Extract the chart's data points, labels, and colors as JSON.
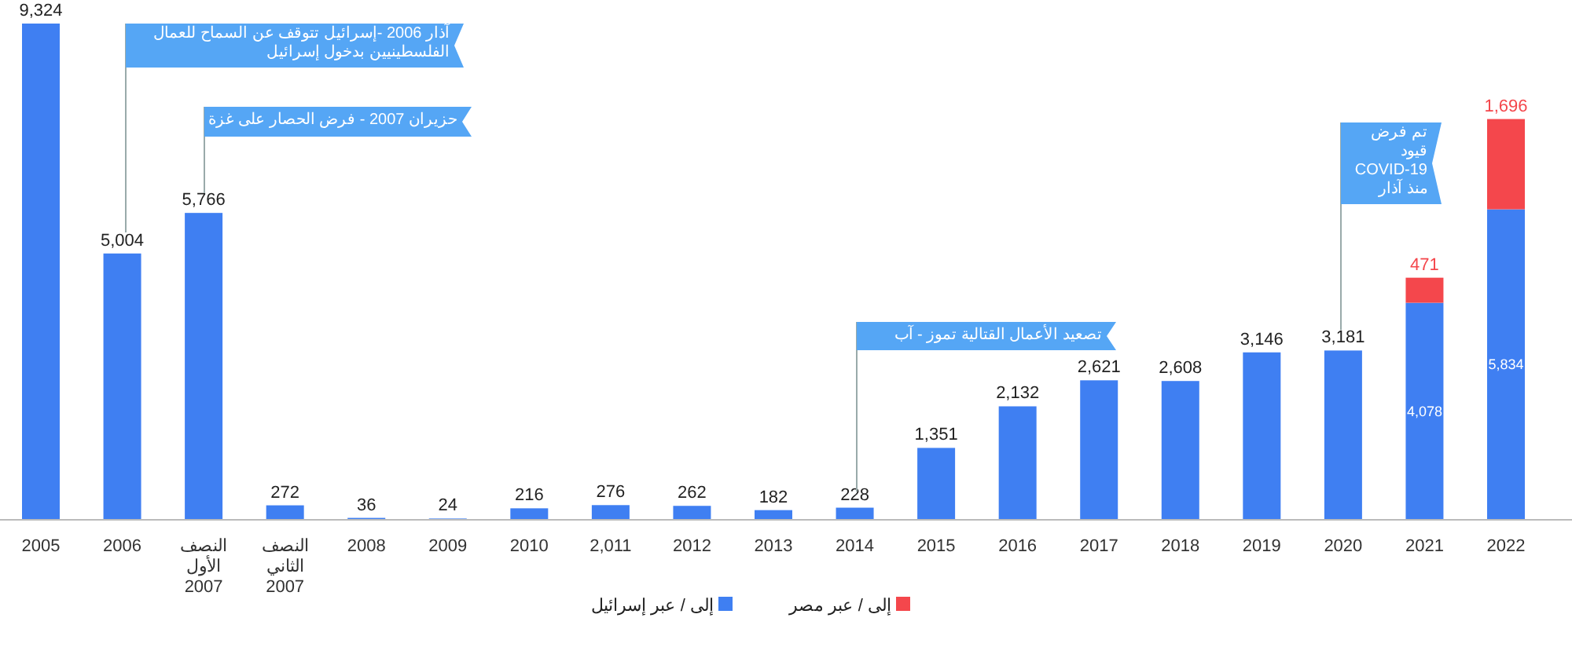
{
  "chart_data": {
    "type": "bar",
    "stacked": true,
    "legend": "bottom",
    "categories": [
      "2005",
      "2006",
      "النصف الأول 2007",
      "النصف الثاني 2007",
      "2008",
      "2009",
      "2010",
      "2,011",
      "2012",
      "2013",
      "2014",
      "2015",
      "2016",
      "2017",
      "2018",
      "2019",
      "2020",
      "2021",
      "2022"
    ],
    "series": [
      {
        "name": "إلى / عبر إسرائيل",
        "color": "#3f7ff2",
        "values": [
          9324,
          5004,
          5766,
          272,
          36,
          24,
          216,
          276,
          262,
          182,
          228,
          1351,
          2132,
          2621,
          2608,
          3146,
          3181,
          4078,
          5834
        ],
        "value_labels": [
          "9,324",
          "5,004",
          "5,766",
          "272",
          "36",
          "24",
          "216",
          "276",
          "262",
          "182",
          "228",
          "1,351",
          "2,132",
          "2,621",
          "2,608",
          "3,146",
          "3,181",
          "4,078",
          "5,834"
        ]
      },
      {
        "name": "إلى / عبر مصر",
        "color": "#f4474c",
        "values": [
          null,
          null,
          null,
          null,
          null,
          null,
          null,
          null,
          null,
          null,
          null,
          null,
          null,
          null,
          null,
          null,
          null,
          471,
          1696
        ],
        "value_labels": [
          null,
          null,
          null,
          null,
          null,
          null,
          null,
          null,
          null,
          null,
          null,
          null,
          null,
          null,
          null,
          null,
          null,
          "471",
          "1,696"
        ]
      }
    ],
    "annotations": [
      "آذار 2006 -إسرائيل تتوقف عن السماح للعمال الفلسطينيين بدخول إسرائيل",
      "حزيران 2007 - فرض الحصار على غزة",
      "تصعيد الأعمال القتالية تموز - آب",
      "تم فرض قيود COVID-19 منذ آذار"
    ]
  }
}
